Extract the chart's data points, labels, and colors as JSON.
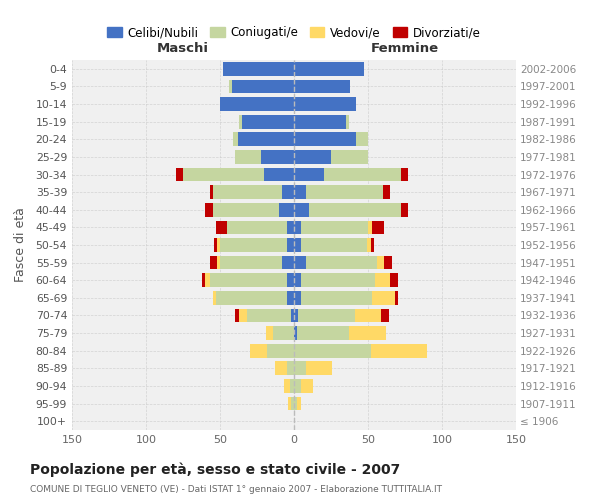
{
  "age_groups": [
    "0-4",
    "5-9",
    "10-14",
    "15-19",
    "20-24",
    "25-29",
    "30-34",
    "35-39",
    "40-44",
    "45-49",
    "50-54",
    "55-59",
    "60-64",
    "65-69",
    "70-74",
    "75-79",
    "80-84",
    "85-89",
    "90-94",
    "95-99",
    "100+"
  ],
  "birth_years": [
    "2002-2006",
    "1997-2001",
    "1992-1996",
    "1987-1991",
    "1982-1986",
    "1977-1981",
    "1972-1976",
    "1967-1971",
    "1962-1966",
    "1957-1961",
    "1952-1956",
    "1947-1951",
    "1942-1946",
    "1937-1941",
    "1932-1936",
    "1927-1931",
    "1922-1926",
    "1917-1921",
    "1912-1916",
    "1907-1911",
    "≤ 1906"
  ],
  "males": {
    "celibi": [
      48,
      42,
      50,
      35,
      38,
      22,
      20,
      8,
      10,
      5,
      5,
      8,
      5,
      5,
      2,
      0,
      0,
      0,
      0,
      0,
      0
    ],
    "coniugati": [
      0,
      2,
      0,
      2,
      3,
      18,
      55,
      47,
      45,
      40,
      45,
      42,
      52,
      48,
      30,
      14,
      18,
      5,
      3,
      2,
      0
    ],
    "vedovi": [
      0,
      0,
      0,
      0,
      0,
      0,
      0,
      0,
      0,
      0,
      2,
      2,
      3,
      2,
      5,
      5,
      12,
      8,
      4,
      2,
      0
    ],
    "divorziati": [
      0,
      0,
      0,
      0,
      0,
      0,
      5,
      2,
      5,
      8,
      2,
      5,
      2,
      0,
      3,
      0,
      0,
      0,
      0,
      0,
      0
    ]
  },
  "females": {
    "nubili": [
      47,
      38,
      42,
      35,
      42,
      25,
      20,
      8,
      10,
      5,
      5,
      8,
      5,
      5,
      3,
      2,
      0,
      0,
      0,
      0,
      0
    ],
    "coniugate": [
      0,
      0,
      0,
      2,
      8,
      25,
      52,
      52,
      62,
      45,
      44,
      48,
      50,
      48,
      38,
      35,
      52,
      8,
      5,
      2,
      0
    ],
    "vedove": [
      0,
      0,
      0,
      0,
      0,
      0,
      0,
      0,
      0,
      3,
      3,
      5,
      10,
      15,
      18,
      25,
      38,
      18,
      8,
      3,
      0
    ],
    "divorziate": [
      0,
      0,
      0,
      0,
      0,
      0,
      5,
      5,
      5,
      8,
      2,
      5,
      5,
      2,
      5,
      0,
      0,
      0,
      0,
      0,
      0
    ]
  },
  "colors": {
    "celibi_nubili": "#4472C4",
    "coniugati_e": "#c5d6a0",
    "vedovi_e": "#FFD966",
    "divorziati_e": "#C00000"
  },
  "xlim": 150,
  "title": "Popolazione per età, sesso e stato civile - 2007",
  "subtitle": "COMUNE DI TEGLIO VENETO (VE) - Dati ISTAT 1° gennaio 2007 - Elaborazione TUTTITALIA.IT",
  "ylabel": "Fasce di età",
  "legend_labels": [
    "Celibi/Nubili",
    "Coniugati/e",
    "Vedovi/e",
    "Divorziati/e"
  ],
  "maschi_label": "Maschi",
  "femmine_label": "Femmine",
  "background_color": "#ffffff",
  "plot_bg": "#f0f0f0",
  "grid_color": "#cccccc"
}
